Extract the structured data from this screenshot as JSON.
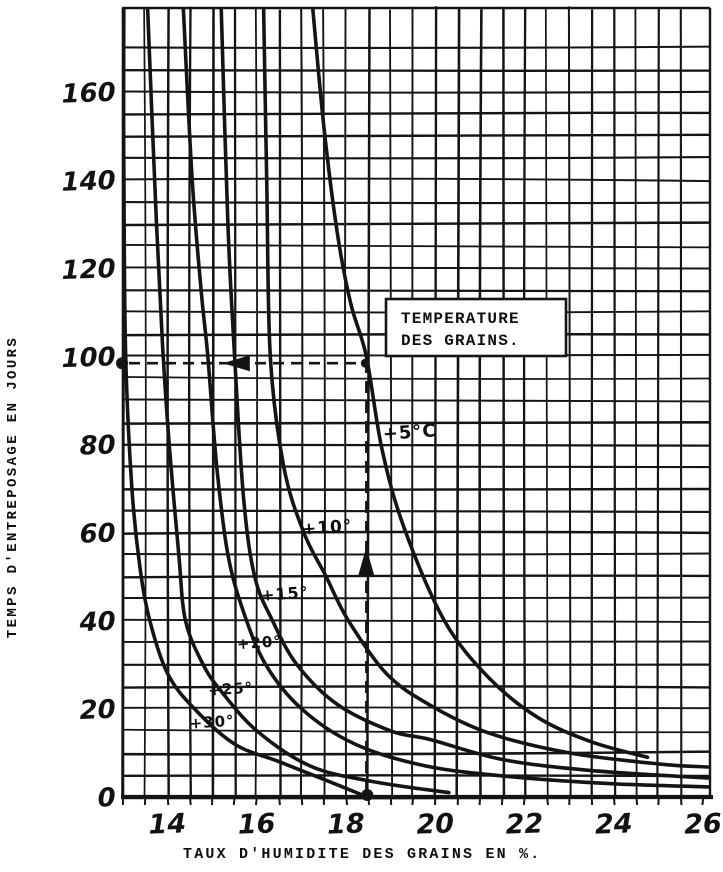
{
  "page": {
    "background": "#ffffff",
    "ink_color": "#141414",
    "style": "hand-drawn scanned technical chart, black ink on white"
  },
  "chart_data": {
    "type": "line",
    "title": "",
    "xlabel": "TAUX D'HUMIDITE DES GRAINS EN %.",
    "ylabel": "TEMPS D'ENTREPOSAGE EN JOURS",
    "xlim": [
      13,
      26.15
    ],
    "ylim": [
      0,
      179
    ],
    "x_ticks": [
      14,
      16,
      18,
      20,
      22,
      24,
      26
    ],
    "y_ticks": [
      0,
      20,
      40,
      60,
      80,
      100,
      120,
      140,
      160
    ],
    "grid": {
      "on": true,
      "x_step": 0.5,
      "y_step": 5
    },
    "legend": {
      "boxed": true,
      "lines": [
        "TEMPERATURE",
        "DES GRAINS."
      ],
      "position": "upper middle, inside plot"
    },
    "series": [
      {
        "name": "+5°C",
        "temperature_c": 5,
        "label": "+5°C",
        "label_pos": [
          18.83,
          81
        ],
        "label_size": 18,
        "points": [
          [
            17.25,
            179
          ],
          [
            17.5,
            152
          ],
          [
            17.8,
            128
          ],
          [
            18.1,
            112
          ],
          [
            18.45,
            100
          ],
          [
            18.8,
            79
          ],
          [
            19.3,
            61
          ],
          [
            20.2,
            40
          ],
          [
            21.2,
            27
          ],
          [
            22.3,
            18
          ],
          [
            23.5,
            12.5
          ],
          [
            24.75,
            9
          ]
        ]
      },
      {
        "name": "+10°",
        "temperature_c": 10,
        "label": "+10°",
        "label_pos": [
          17.02,
          59.5
        ],
        "label_size": 17,
        "points": [
          [
            16.15,
            179
          ],
          [
            16.22,
            140
          ],
          [
            16.3,
            100
          ],
          [
            16.6,
            75
          ],
          [
            17.05,
            60
          ],
          [
            17.55,
            50
          ],
          [
            18.05,
            40
          ],
          [
            18.9,
            28
          ],
          [
            19.85,
            21
          ],
          [
            21.2,
            14.5
          ],
          [
            23.0,
            10
          ],
          [
            25.0,
            7.5
          ],
          [
            26.1,
            6.8
          ]
        ]
      },
      {
        "name": "+15°",
        "temperature_c": 15,
        "label": "+15°",
        "label_pos": [
          16.1,
          44.5
        ],
        "label_size": 16,
        "points": [
          [
            15.2,
            179
          ],
          [
            15.35,
            130
          ],
          [
            15.5,
            100
          ],
          [
            15.7,
            68
          ],
          [
            15.95,
            50
          ],
          [
            16.35,
            40
          ],
          [
            16.9,
            30
          ],
          [
            17.8,
            21
          ],
          [
            19.0,
            15
          ],
          [
            19.9,
            13
          ],
          [
            21.5,
            8.5
          ],
          [
            23.5,
            6
          ],
          [
            26.1,
            4.3
          ]
        ]
      },
      {
        "name": "+20°",
        "temperature_c": 20,
        "label": "+20°",
        "label_pos": [
          15.56,
          33.5
        ],
        "label_size": 15,
        "points": [
          [
            14.35,
            179
          ],
          [
            14.55,
            140
          ],
          [
            14.75,
            115
          ],
          [
            14.9,
            100
          ],
          [
            15.1,
            75
          ],
          [
            15.35,
            55
          ],
          [
            15.7,
            42
          ],
          [
            16.2,
            30
          ],
          [
            17.0,
            20
          ],
          [
            18.2,
            12
          ],
          [
            19.8,
            7
          ],
          [
            21.8,
            4.5
          ],
          [
            24.0,
            3
          ],
          [
            26.1,
            2.3
          ]
        ]
      },
      {
        "name": "+25°",
        "temperature_c": 25,
        "label": "+25°",
        "label_pos": [
          14.92,
          23
        ],
        "label_size": 15,
        "points": [
          [
            13.55,
            179
          ],
          [
            13.75,
            130
          ],
          [
            13.9,
            100
          ],
          [
            14.05,
            78
          ],
          [
            14.25,
            55
          ],
          [
            14.4,
            40
          ],
          [
            14.8,
            30
          ],
          [
            15.2,
            24
          ],
          [
            16.0,
            15
          ],
          [
            17.2,
            7
          ],
          [
            18.6,
            3.5
          ],
          [
            20.3,
            1
          ]
        ]
      },
      {
        "name": "+30°",
        "temperature_c": 30,
        "label": "+30°",
        "label_pos": [
          14.5,
          15.5
        ],
        "label_size": 15,
        "points": [
          [
            13.0,
            179
          ],
          [
            13.02,
            140
          ],
          [
            13.06,
            100
          ],
          [
            13.2,
            70
          ],
          [
            13.38,
            52
          ],
          [
            13.6,
            40
          ],
          [
            14.0,
            28
          ],
          [
            14.6,
            20
          ],
          [
            15.5,
            12
          ],
          [
            16.5,
            8
          ],
          [
            17.5,
            4
          ],
          [
            18.4,
            0.3
          ]
        ]
      }
    ],
    "annotation": {
      "meaning": "reading example: grain at +5°C and 18.5% moisture keeps 100 days",
      "humidity_pct": 18.45,
      "storage_days": 100,
      "horizontal_guide": {
        "from_pct": 13.0,
        "to_pct": 18.45,
        "at_days": 100,
        "arrow_dir": "left",
        "arrow_at_pct": 15.55,
        "dashed": true
      },
      "vertical_guide": {
        "at_pct": 18.45,
        "from_days": 0,
        "to_days": 100,
        "arrow_dir": "up",
        "arrow_at_days": 53,
        "dashed": true
      },
      "dots": [
        {
          "pct": 13.0,
          "days": 100,
          "where": "on y-axis at 100 days"
        },
        {
          "pct": 18.45,
          "days": 100,
          "where": "on +5°C curve"
        },
        {
          "pct": 18.45,
          "days": 0,
          "where": "on x-axis at 18.5 %"
        }
      ]
    }
  }
}
